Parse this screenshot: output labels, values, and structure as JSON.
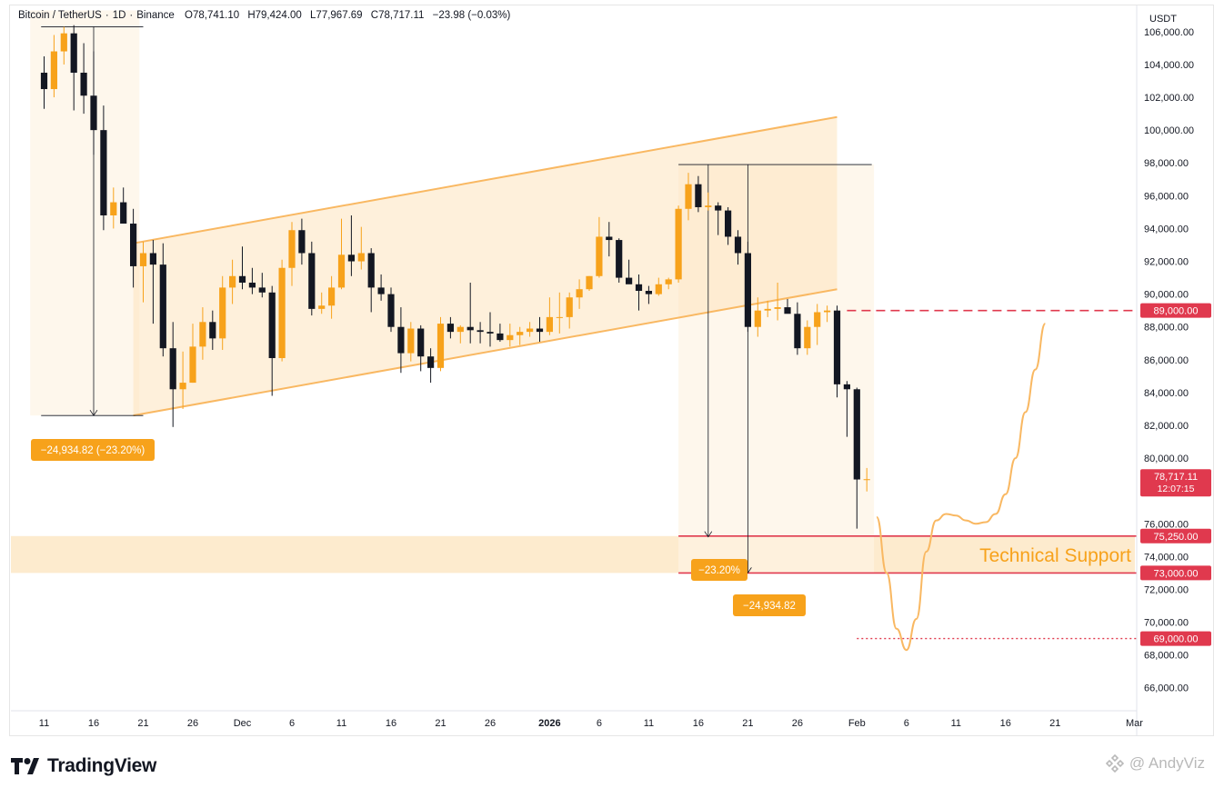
{
  "header": {
    "symbol": "Bitcoin / TetherUS",
    "interval": "1D",
    "exchange": "Binance",
    "open_label": "O",
    "open": "78,741.10",
    "high_label": "H",
    "high": "79,424.00",
    "low_label": "L",
    "low": "77,967.69",
    "close_label": "C",
    "close": "78,717.11",
    "change": "−23.98 (−0.03%)"
  },
  "chart_data": {
    "type": "candlestick",
    "currency": "USDT",
    "ylim": [
      64600,
      107600
    ],
    "y_ticks": [
      "66,000.00",
      "68,000.00",
      "70,000.00",
      "72,000.00",
      "74,000.00",
      "76,000.00",
      "78,000.00",
      "80,000.00",
      "82,000.00",
      "84,000.00",
      "86,000.00",
      "88,000.00",
      "90,000.00",
      "92,000.00",
      "94,000.00",
      "96,000.00",
      "98,000.00",
      "100,000.00",
      "102,000.00",
      "104,000.00",
      "106,000.00"
    ],
    "x_ticks": [
      {
        "label": "11",
        "day": 0
      },
      {
        "label": "16",
        "day": 5
      },
      {
        "label": "21",
        "day": 10
      },
      {
        "label": "26",
        "day": 15
      },
      {
        "label": "Dec",
        "day": 20
      },
      {
        "label": "6",
        "day": 25
      },
      {
        "label": "11",
        "day": 30
      },
      {
        "label": "16",
        "day": 35
      },
      {
        "label": "21",
        "day": 40
      },
      {
        "label": "26",
        "day": 45
      },
      {
        "label": "2026",
        "day": 51
      },
      {
        "label": "6",
        "day": 56
      },
      {
        "label": "11",
        "day": 61
      },
      {
        "label": "16",
        "day": 66
      },
      {
        "label": "21",
        "day": 71
      },
      {
        "label": "26",
        "day": 76
      },
      {
        "label": "Feb",
        "day": 82
      },
      {
        "label": "6",
        "day": 87
      },
      {
        "label": "11",
        "day": 92
      },
      {
        "label": "16",
        "day": 97
      },
      {
        "label": "21",
        "day": 102
      },
      {
        "label": "Mar",
        "day": 110
      }
    ],
    "candles": [
      [
        103500,
        104500,
        101300,
        102500
      ],
      [
        102500,
        105800,
        102000,
        104800
      ],
      [
        104800,
        106300,
        104000,
        105900
      ],
      [
        105900,
        106400,
        101200,
        103500
      ],
      [
        103500,
        105300,
        101000,
        102100
      ],
      [
        102100,
        104800,
        98500,
        100000
      ],
      [
        100000,
        101500,
        93900,
        94800
      ],
      [
        94800,
        96500,
        94000,
        95600
      ],
      [
        95600,
        96500,
        94300,
        94300
      ],
      [
        94300,
        95200,
        90400,
        91700
      ],
      [
        91700,
        93200,
        89500,
        92500
      ],
      [
        92500,
        93300,
        88200,
        91800
      ],
      [
        91800,
        93100,
        86200,
        86700
      ],
      [
        86700,
        88300,
        81900,
        84200
      ],
      [
        84200,
        86500,
        83000,
        84600
      ],
      [
        84600,
        88200,
        84600,
        86800
      ],
      [
        86800,
        89200,
        86000,
        88300
      ],
      [
        88300,
        89000,
        86600,
        87300
      ],
      [
        87300,
        91100,
        86600,
        90400
      ],
      [
        90400,
        92100,
        89400,
        91100
      ],
      [
        91100,
        92900,
        90300,
        90700
      ],
      [
        90700,
        91600,
        90000,
        90400
      ],
      [
        90400,
        91300,
        89800,
        90100
      ],
      [
        90100,
        90500,
        83800,
        86100
      ],
      [
        86100,
        92100,
        85900,
        91600
      ],
      [
        91600,
        94400,
        90500,
        93900
      ],
      [
        93900,
        94600,
        91800,
        92500
      ],
      [
        92500,
        93200,
        88700,
        89100
      ],
      [
        89100,
        90100,
        88800,
        89300
      ],
      [
        89300,
        91100,
        88500,
        90400
      ],
      [
        90400,
        94600,
        90300,
        92400
      ],
      [
        92400,
        94800,
        91100,
        92000
      ],
      [
        92000,
        94100,
        91500,
        92500
      ],
      [
        92500,
        92800,
        88900,
        90400
      ],
      [
        90400,
        91200,
        89600,
        90000
      ],
      [
        90000,
        90400,
        87700,
        88000
      ],
      [
        88000,
        89200,
        85200,
        86400
      ],
      [
        86400,
        88300,
        85900,
        87900
      ],
      [
        87900,
        88100,
        85300,
        86200
      ],
      [
        86200,
        86700,
        84600,
        85500
      ],
      [
        85500,
        88600,
        85300,
        88200
      ],
      [
        88200,
        88600,
        87300,
        87700
      ],
      [
        87700,
        88100,
        87000,
        88000
      ],
      [
        88000,
        90700,
        87000,
        87800
      ],
      [
        87800,
        88300,
        87000,
        87700
      ],
      [
        87700,
        88900,
        86800,
        87600
      ],
      [
        87600,
        88200,
        87100,
        87200
      ],
      [
        87200,
        88200,
        86800,
        87500
      ],
      [
        87500,
        88000,
        86900,
        87700
      ],
      [
        87700,
        88300,
        87400,
        87900
      ],
      [
        87900,
        88600,
        87100,
        87700
      ],
      [
        87700,
        89800,
        87500,
        88600
      ],
      [
        88600,
        90100,
        87600,
        88600
      ],
      [
        88600,
        90100,
        87900,
        89800
      ],
      [
        89800,
        90900,
        89100,
        90300
      ],
      [
        90300,
        91100,
        90200,
        91100
      ],
      [
        91100,
        94700,
        91000,
        93500
      ],
      [
        93500,
        94400,
        92300,
        93300
      ],
      [
        93300,
        93400,
        90700,
        91000
      ],
      [
        91000,
        92100,
        90700,
        90600
      ],
      [
        90600,
        91200,
        89000,
        90200
      ],
      [
        90200,
        90500,
        89400,
        90000
      ],
      [
        90000,
        91000,
        89900,
        90600
      ],
      [
        90600,
        91000,
        90300,
        90900
      ],
      [
        90900,
        95400,
        90700,
        95200
      ],
      [
        95200,
        97400,
        94500,
        96700
      ],
      [
        96700,
        97200,
        95000,
        95300
      ],
      [
        95300,
        96200,
        95100,
        95400
      ],
      [
        95400,
        95600,
        93600,
        95100
      ],
      [
        95100,
        95300,
        93000,
        93500
      ],
      [
        93500,
        93900,
        91800,
        92500
      ],
      [
        92500,
        93200,
        87700,
        88000
      ],
      [
        88000,
        89800,
        87400,
        89000
      ],
      [
        89000,
        89600,
        88600,
        89100
      ],
      [
        89100,
        90700,
        88400,
        89200
      ],
      [
        89200,
        89700,
        88900,
        88800
      ],
      [
        88800,
        89500,
        86300,
        86700
      ],
      [
        86700,
        88400,
        86300,
        88000
      ],
      [
        88000,
        89400,
        86900,
        88900
      ],
      [
        88900,
        89300,
        88300,
        89000
      ],
      [
        89000,
        89300,
        83700,
        84500
      ],
      [
        84500,
        84700,
        81300,
        84200
      ],
      [
        84200,
        84300,
        75700,
        78700
      ],
      [
        78700,
        79400,
        77970,
        78717
      ]
    ],
    "channel": {
      "upper": [
        [
          9,
          93100
        ],
        [
          80,
          100800
        ]
      ],
      "lower": [
        [
          9,
          82600
        ],
        [
          80,
          90300
        ]
      ]
    },
    "levels": [
      {
        "label": "89,000.00",
        "value": 89000,
        "style": "dashed"
      },
      {
        "label": "75,250.00",
        "value": 75250,
        "style": "solid"
      },
      {
        "label": "73,000.00",
        "value": 73000,
        "style": "solid"
      },
      {
        "label": "69,000.00",
        "value": 69000,
        "style": "dotted"
      }
    ],
    "last_price": {
      "value": 78717.11,
      "label": "78,717.11",
      "countdown": "12:07:15"
    },
    "support_zone": {
      "from": 73000,
      "to": 75250,
      "label": "Technical Support"
    },
    "measurements": [
      {
        "label": "−24,934.82 (−23.20%)",
        "from_day": 1,
        "from_price": 106300,
        "to_price": 82600
      },
      {
        "label": "−23.20%",
        "day": 67,
        "from_price": 97900,
        "to_price": 75200
      },
      {
        "label": "−24,934.82",
        "day": 71,
        "from_price": 97900,
        "to_price": 73000
      }
    ],
    "projection": [
      [
        84,
        76400
      ],
      [
        85,
        73000
      ],
      [
        86,
        69600
      ],
      [
        87,
        68300
      ],
      [
        88,
        70200
      ],
      [
        89,
        74300
      ],
      [
        90,
        76200
      ],
      [
        91,
        76600
      ],
      [
        92,
        76500
      ],
      [
        93,
        76200
      ],
      [
        94,
        76000
      ],
      [
        95,
        76100
      ],
      [
        96,
        76600
      ],
      [
        97,
        77800
      ],
      [
        98,
        80000
      ],
      [
        99,
        82800
      ],
      [
        100,
        85400
      ],
      [
        101,
        88200
      ]
    ]
  },
  "footer": {
    "brand": "TradingView",
    "watermark": "@ AndyViz"
  },
  "colors": {
    "up": "#f7a21b",
    "down": "#131722",
    "channel": "#f9b862",
    "level": "#e0394e",
    "label_bg": "#f7a21b"
  }
}
